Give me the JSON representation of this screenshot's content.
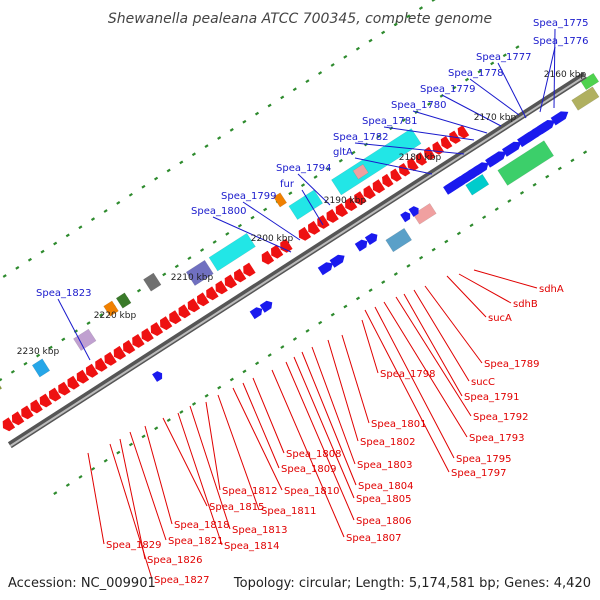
{
  "title": "Shewanella pealeana ATCC 700345, complete genome",
  "footer": {
    "accession": "Accession: NC_009901",
    "info": "Topology: circular; Length: 5,174,581 bp; Genes: 4,420"
  },
  "colors": {
    "forward_label": "#1a1acc",
    "reverse_label": "#e00000",
    "forward_gene": "#1a1aee",
    "reverse_gene": "#ee1111",
    "backbone": "#888888",
    "tick": "#2e8b2e"
  },
  "kbp_labels": [
    "2160 kbp",
    "2170 kbp",
    "2180 kbp",
    "2190 kbp",
    "2200 kbp",
    "2210 kbp",
    "2220 kbp",
    "2230 kbp"
  ],
  "forward_genes": [
    "Spea_1775",
    "Spea_1776",
    "Spea_1777",
    "Spea_1778",
    "Spea_1779",
    "Spea_1780",
    "Spea_1781",
    "Spea_1782",
    "gltA",
    "Spea_1794",
    "fur",
    "Spea_1799",
    "Spea_1800",
    "Spea_1823"
  ],
  "reverse_genes": [
    "sdhA",
    "sdhB",
    "sucA",
    "Spea_1789",
    "sucC",
    "Spea_1791",
    "Spea_1792",
    "Spea_1793",
    "Spea_1795",
    "Spea_1797",
    "Spea_1798",
    "Spea_1801",
    "Spea_1802",
    "Spea_1803",
    "Spea_1804",
    "Spea_1805",
    "Spea_1806",
    "Spea_1807",
    "Spea_1808",
    "Spea_1809",
    "Spea_1810",
    "Spea_1811",
    "Spea_1812",
    "Spea_1813",
    "Spea_1814",
    "Spea_1815",
    "Spea_1818",
    "Spea_1821",
    "Spea_1826",
    "Spea_1827",
    "Spea_1829"
  ]
}
